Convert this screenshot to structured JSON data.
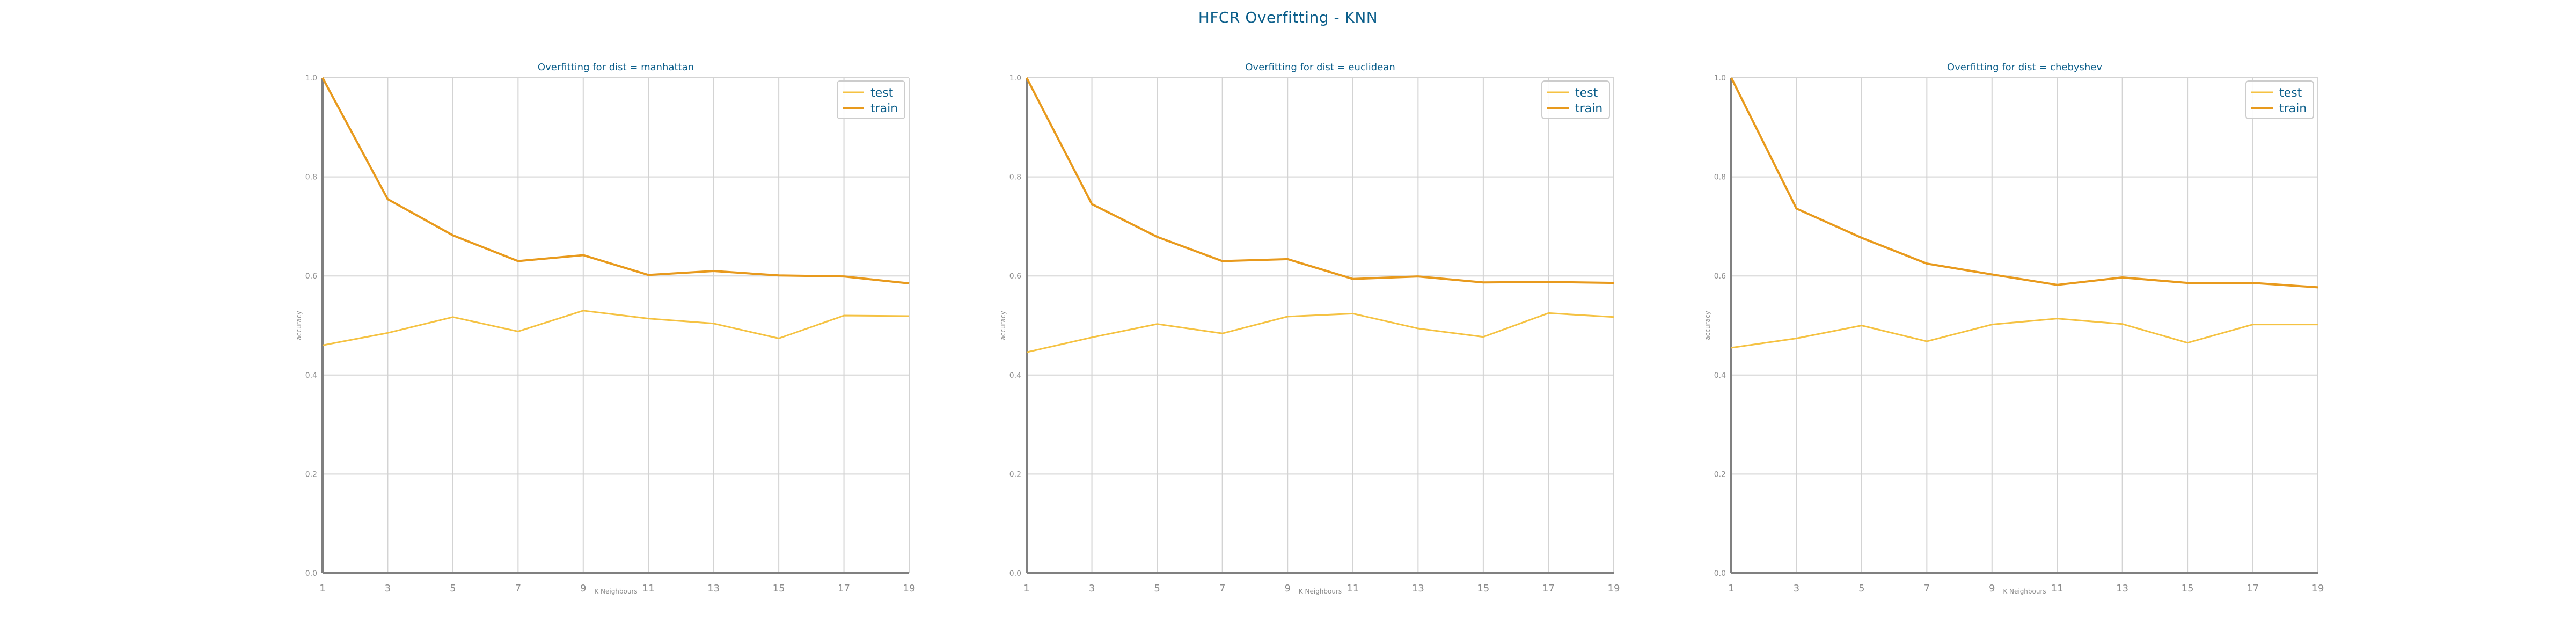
{
  "figure": {
    "title": "HFCR Overfitting - KNN"
  },
  "colors": {
    "title": "#0b5e8a",
    "test": "#f5c242",
    "train": "#e89a1d",
    "grid": "#d3d3d3",
    "axis": "#808080",
    "tick_label": "#8c8c8c"
  },
  "chart_data": [
    {
      "type": "line",
      "title": "Overfitting for dist = manhattan",
      "xlabel": "K Neighbours",
      "ylabel": "accuracy",
      "x": [
        1,
        3,
        5,
        7,
        9,
        11,
        13,
        15,
        17,
        19
      ],
      "xticks": [
        "1",
        "3",
        "5",
        "7",
        "9",
        "11",
        "13",
        "15",
        "17",
        "19"
      ],
      "ylim": [
        0.0,
        1.0
      ],
      "yticks": [
        "0.0",
        "0.2",
        "0.4",
        "0.6",
        "0.8",
        "1.0"
      ],
      "grid": true,
      "legend": "top-right",
      "series": [
        {
          "name": "test",
          "values": [
            0.46,
            0.485,
            0.517,
            0.488,
            0.53,
            0.514,
            0.504,
            0.474,
            0.52,
            0.519
          ]
        },
        {
          "name": "train",
          "values": [
            1.0,
            0.755,
            0.682,
            0.63,
            0.642,
            0.602,
            0.61,
            0.601,
            0.599,
            0.585
          ]
        }
      ]
    },
    {
      "type": "line",
      "title": "Overfitting for dist = euclidean",
      "xlabel": "K Neighbours",
      "ylabel": "accuracy",
      "x": [
        1,
        3,
        5,
        7,
        9,
        11,
        13,
        15,
        17,
        19
      ],
      "xticks": [
        "1",
        "3",
        "5",
        "7",
        "9",
        "11",
        "13",
        "15",
        "17",
        "19"
      ],
      "ylim": [
        0.0,
        1.0
      ],
      "yticks": [
        "0.0",
        "0.2",
        "0.4",
        "0.6",
        "0.8",
        "1.0"
      ],
      "grid": true,
      "legend": "top-right",
      "series": [
        {
          "name": "test",
          "values": [
            0.446,
            0.476,
            0.503,
            0.484,
            0.518,
            0.524,
            0.494,
            0.477,
            0.525,
            0.517
          ]
        },
        {
          "name": "train",
          "values": [
            1.0,
            0.745,
            0.679,
            0.63,
            0.634,
            0.594,
            0.599,
            0.587,
            0.588,
            0.586
          ]
        }
      ]
    },
    {
      "type": "line",
      "title": "Overfitting for dist = chebyshev",
      "xlabel": "K Neighbours",
      "ylabel": "accuracy",
      "x": [
        1,
        3,
        5,
        7,
        9,
        11,
        13,
        15,
        17,
        19
      ],
      "xticks": [
        "1",
        "3",
        "5",
        "7",
        "9",
        "11",
        "13",
        "15",
        "17",
        "19"
      ],
      "ylim": [
        0.0,
        1.0
      ],
      "yticks": [
        "0.0",
        "0.2",
        "0.4",
        "0.6",
        "0.8",
        "1.0"
      ],
      "grid": true,
      "legend": "top-right",
      "series": [
        {
          "name": "test",
          "values": [
            0.455,
            0.474,
            0.5,
            0.468,
            0.502,
            0.514,
            0.503,
            0.465,
            0.502,
            0.502
          ]
        },
        {
          "name": "train",
          "values": [
            1.0,
            0.736,
            0.677,
            0.625,
            0.603,
            0.582,
            0.597,
            0.586,
            0.586,
            0.577
          ]
        }
      ]
    }
  ]
}
